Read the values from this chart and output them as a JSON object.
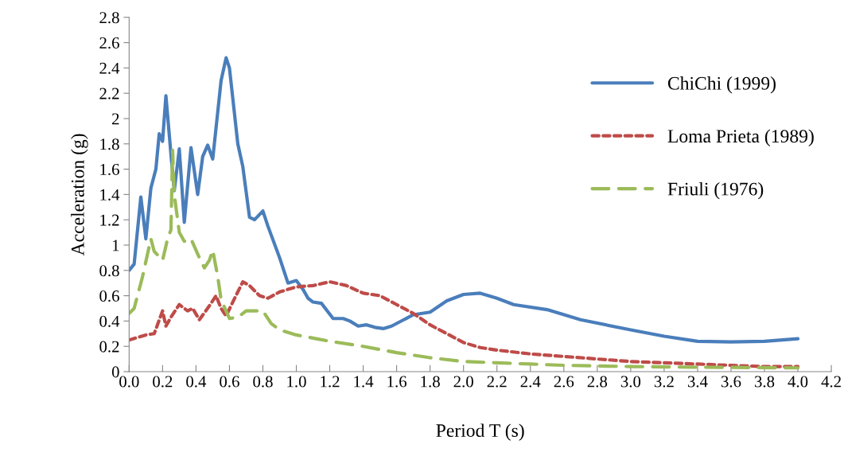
{
  "chart_data": {
    "type": "line",
    "xlabel": "Period T (s)",
    "ylabel": "Acceleration (g)",
    "xlim": [
      0,
      4.2
    ],
    "xticks": [
      {
        "value": 0,
        "label": "0.0"
      },
      {
        "value": 0.2,
        "label": "0.2"
      },
      {
        "value": 0.4,
        "label": "0.4"
      },
      {
        "value": 0.6,
        "label": "0.6"
      },
      {
        "value": 0.8,
        "label": "0.8"
      },
      {
        "value": 1.0,
        "label": "1.0"
      },
      {
        "value": 1.2,
        "label": "1.2"
      },
      {
        "value": 1.4,
        "label": "1.4"
      },
      {
        "value": 1.6,
        "label": "1.6"
      },
      {
        "value": 1.8,
        "label": "1.8"
      },
      {
        "value": 2.0,
        "label": "2.0"
      },
      {
        "value": 2.2,
        "label": "2.2"
      },
      {
        "value": 2.4,
        "label": "2.4"
      },
      {
        "value": 2.6,
        "label": "2.6"
      },
      {
        "value": 2.8,
        "label": "2.8"
      },
      {
        "value": 3.0,
        "label": "3.0"
      },
      {
        "value": 3.2,
        "label": "3.2"
      },
      {
        "value": 3.4,
        "label": "3.4"
      },
      {
        "value": 3.6,
        "label": "3.6"
      },
      {
        "value": 3.8,
        "label": "3.8"
      },
      {
        "value": 4.0,
        "label": "4.0"
      },
      {
        "value": 4.2,
        "label": "4.2"
      }
    ],
    "ylim": [
      0,
      2.8
    ],
    "yticks": [
      0,
      0.2,
      0.4,
      0.6,
      0.8,
      1,
      1.2,
      1.4,
      1.6,
      1.8,
      2,
      2.2,
      2.4,
      2.6,
      2.8
    ],
    "grid": false,
    "legend": "right",
    "marker": "none",
    "series": [
      {
        "name": "ChiChi (1999)",
        "color": "#4a7ebb",
        "line_style": "solid",
        "x": [
          0.0,
          0.03,
          0.07,
          0.1,
          0.13,
          0.16,
          0.18,
          0.2,
          0.22,
          0.25,
          0.27,
          0.3,
          0.33,
          0.37,
          0.41,
          0.44,
          0.47,
          0.5,
          0.55,
          0.58,
          0.6,
          0.65,
          0.68,
          0.72,
          0.75,
          0.8,
          0.83,
          0.9,
          0.95,
          1.0,
          1.04,
          1.07,
          1.1,
          1.15,
          1.22,
          1.28,
          1.32,
          1.37,
          1.42,
          1.47,
          1.52,
          1.57,
          1.7,
          1.8,
          1.9,
          2.0,
          2.1,
          2.2,
          2.3,
          2.5,
          2.7,
          3.0,
          3.2,
          3.4,
          3.6,
          3.8,
          4.0
        ],
        "values": [
          0.8,
          0.85,
          1.38,
          1.05,
          1.45,
          1.6,
          1.88,
          1.82,
          2.18,
          1.72,
          1.43,
          1.76,
          1.18,
          1.77,
          1.4,
          1.7,
          1.79,
          1.68,
          2.3,
          2.48,
          2.4,
          1.8,
          1.62,
          1.22,
          1.2,
          1.27,
          1.15,
          0.9,
          0.7,
          0.72,
          0.65,
          0.58,
          0.55,
          0.54,
          0.42,
          0.42,
          0.4,
          0.36,
          0.37,
          0.35,
          0.34,
          0.36,
          0.45,
          0.47,
          0.56,
          0.61,
          0.62,
          0.58,
          0.53,
          0.49,
          0.41,
          0.33,
          0.28,
          0.24,
          0.235,
          0.24,
          0.26
        ]
      },
      {
        "name": "Loma Prieta (1989)",
        "color": "#be4b48",
        "line_style": "dotted",
        "x": [
          0.0,
          0.1,
          0.15,
          0.2,
          0.22,
          0.25,
          0.3,
          0.35,
          0.38,
          0.42,
          0.48,
          0.52,
          0.55,
          0.58,
          0.62,
          0.68,
          0.72,
          0.78,
          0.83,
          0.9,
          1.0,
          1.1,
          1.2,
          1.3,
          1.4,
          1.5,
          1.6,
          1.7,
          1.8,
          1.9,
          2.0,
          2.1,
          2.2,
          2.4,
          2.6,
          2.8,
          3.0,
          3.2,
          3.4,
          3.6,
          3.8,
          4.0
        ],
        "values": [
          0.25,
          0.29,
          0.3,
          0.48,
          0.36,
          0.43,
          0.53,
          0.48,
          0.5,
          0.41,
          0.52,
          0.6,
          0.5,
          0.44,
          0.55,
          0.71,
          0.68,
          0.6,
          0.58,
          0.63,
          0.67,
          0.68,
          0.71,
          0.68,
          0.62,
          0.6,
          0.53,
          0.46,
          0.37,
          0.3,
          0.23,
          0.19,
          0.17,
          0.14,
          0.12,
          0.1,
          0.08,
          0.07,
          0.06,
          0.05,
          0.04,
          0.04
        ]
      },
      {
        "name": "Friuli (1976)",
        "color": "#9bbb59",
        "line_style": "dashed",
        "x": [
          0.0,
          0.03,
          0.08,
          0.13,
          0.15,
          0.2,
          0.23,
          0.25,
          0.26,
          0.27,
          0.3,
          0.33,
          0.37,
          0.42,
          0.45,
          0.48,
          0.5,
          0.53,
          0.55,
          0.6,
          0.65,
          0.7,
          0.8,
          0.85,
          0.9,
          1.0,
          1.2,
          1.4,
          1.6,
          1.8,
          2.0,
          2.2,
          2.4,
          2.6,
          3.0,
          3.4,
          4.0
        ],
        "values": [
          0.46,
          0.5,
          0.75,
          1.05,
          0.95,
          0.88,
          1.05,
          1.12,
          1.75,
          1.4,
          1.1,
          1.03,
          1.05,
          0.9,
          0.82,
          0.88,
          0.96,
          0.75,
          0.57,
          0.42,
          0.43,
          0.48,
          0.48,
          0.38,
          0.33,
          0.29,
          0.24,
          0.2,
          0.15,
          0.11,
          0.08,
          0.07,
          0.06,
          0.05,
          0.04,
          0.035,
          0.03
        ]
      }
    ]
  }
}
